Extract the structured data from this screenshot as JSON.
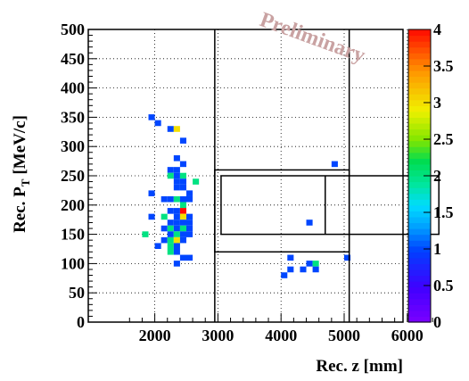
{
  "chart_data": {
    "type": "heatmap",
    "watermark": "Preliminary",
    "xlabel": "Rec. z [mm]",
    "ylabel_main": "Rec. P",
    "ylabel_sub": "T",
    "ylabel_unit": "[MeV/c]",
    "xlim": [
      1600,
      6500
    ],
    "ylim": [
      0,
      500
    ],
    "grid": true,
    "x_ticks": [
      2000,
      3000,
      4000,
      5000,
      6000
    ],
    "x_tick_labels": [
      "2000",
      "3000",
      "4000",
      "5000",
      "6000"
    ],
    "y_ticks": [
      0,
      50,
      100,
      150,
      200,
      250,
      300,
      350,
      400,
      450,
      500
    ],
    "y_tick_labels": [
      "0",
      "50",
      "100",
      "150",
      "200",
      "250",
      "300",
      "350",
      "400",
      "450",
      "500"
    ],
    "z_range": [
      0,
      4
    ],
    "z_ticks": [
      0,
      0.5,
      1,
      1.5,
      2,
      2.5,
      3,
      3.5,
      4
    ],
    "z_tick_labels": [
      "0",
      "0.5",
      "1",
      "1.5",
      "2",
      "2.5",
      "3",
      "3.5",
      "4"
    ],
    "bin_width_mm": 100,
    "bin_height_mev": 10,
    "bins": [
      {
        "x": 1950,
        "y": 350,
        "z": 1
      },
      {
        "x": 2050,
        "y": 340,
        "z": 1
      },
      {
        "x": 2250,
        "y": 330,
        "z": 1
      },
      {
        "x": 2350,
        "y": 330,
        "z": 3
      },
      {
        "x": 2450,
        "y": 310,
        "z": 1
      },
      {
        "x": 2450,
        "y": 270,
        "z": 1
      },
      {
        "x": 2350,
        "y": 280,
        "z": 1
      },
      {
        "x": 2250,
        "y": 260,
        "z": 1
      },
      {
        "x": 2350,
        "y": 260,
        "z": 1
      },
      {
        "x": 2250,
        "y": 250,
        "z": 2
      },
      {
        "x": 2350,
        "y": 250,
        "z": 1
      },
      {
        "x": 2450,
        "y": 250,
        "z": 2
      },
      {
        "x": 2350,
        "y": 240,
        "z": 1
      },
      {
        "x": 2450,
        "y": 240,
        "z": 1
      },
      {
        "x": 2650,
        "y": 240,
        "z": 2
      },
      {
        "x": 1950,
        "y": 220,
        "z": 1
      },
      {
        "x": 2350,
        "y": 230,
        "z": 1
      },
      {
        "x": 2450,
        "y": 230,
        "z": 1
      },
      {
        "x": 2550,
        "y": 220,
        "z": 1
      },
      {
        "x": 2150,
        "y": 210,
        "z": 1
      },
      {
        "x": 2250,
        "y": 210,
        "z": 1
      },
      {
        "x": 2350,
        "y": 210,
        "z": 2
      },
      {
        "x": 2450,
        "y": 210,
        "z": 1
      },
      {
        "x": 2550,
        "y": 210,
        "z": 1
      },
      {
        "x": 2450,
        "y": 200,
        "z": 2
      },
      {
        "x": 2250,
        "y": 190,
        "z": 1
      },
      {
        "x": 2350,
        "y": 190,
        "z": 1
      },
      {
        "x": 2450,
        "y": 190,
        "z": 4
      },
      {
        "x": 1950,
        "y": 180,
        "z": 1
      },
      {
        "x": 2150,
        "y": 180,
        "z": 2
      },
      {
        "x": 2350,
        "y": 180,
        "z": 1
      },
      {
        "x": 2450,
        "y": 180,
        "z": 3
      },
      {
        "x": 2550,
        "y": 180,
        "z": 1
      },
      {
        "x": 2250,
        "y": 170,
        "z": 1
      },
      {
        "x": 2350,
        "y": 170,
        "z": 1
      },
      {
        "x": 2450,
        "y": 170,
        "z": 1
      },
      {
        "x": 2550,
        "y": 170,
        "z": 1
      },
      {
        "x": 2150,
        "y": 160,
        "z": 1
      },
      {
        "x": 2250,
        "y": 160,
        "z": 2
      },
      {
        "x": 2350,
        "y": 160,
        "z": 1
      },
      {
        "x": 2450,
        "y": 160,
        "z": 2
      },
      {
        "x": 2550,
        "y": 160,
        "z": 1
      },
      {
        "x": 1850,
        "y": 150,
        "z": 2
      },
      {
        "x": 2250,
        "y": 150,
        "z": 1
      },
      {
        "x": 2350,
        "y": 150,
        "z": 2
      },
      {
        "x": 2450,
        "y": 150,
        "z": 1
      },
      {
        "x": 2550,
        "y": 150,
        "z": 1
      },
      {
        "x": 2150,
        "y": 140,
        "z": 1
      },
      {
        "x": 2250,
        "y": 140,
        "z": 2
      },
      {
        "x": 2350,
        "y": 140,
        "z": 3
      },
      {
        "x": 2450,
        "y": 140,
        "z": 1
      },
      {
        "x": 2050,
        "y": 130,
        "z": 1
      },
      {
        "x": 2250,
        "y": 130,
        "z": 2
      },
      {
        "x": 2350,
        "y": 130,
        "z": 1
      },
      {
        "x": 2250,
        "y": 120,
        "z": 2
      },
      {
        "x": 2350,
        "y": 120,
        "z": 1
      },
      {
        "x": 2450,
        "y": 110,
        "z": 1
      },
      {
        "x": 2550,
        "y": 110,
        "z": 1
      },
      {
        "x": 2350,
        "y": 100,
        "z": 1
      },
      {
        "x": 4850,
        "y": 270,
        "z": 1
      },
      {
        "x": 4450,
        "y": 170,
        "z": 1
      },
      {
        "x": 4150,
        "y": 110,
        "z": 1
      },
      {
        "x": 5050,
        "y": 110,
        "z": 1
      },
      {
        "x": 4450,
        "y": 100,
        "z": 1
      },
      {
        "x": 4550,
        "y": 100,
        "z": 2
      },
      {
        "x": 4150,
        "y": 90,
        "z": 1
      },
      {
        "x": 4350,
        "y": 90,
        "z": 1
      },
      {
        "x": 4550,
        "y": 90,
        "z": 1
      },
      {
        "x": 4050,
        "y": 80,
        "z": 1
      }
    ],
    "boxes": [
      {
        "x0": 2950,
        "x1": 2950,
        "y0": 0,
        "y1": 500
      },
      {
        "x0": 5080,
        "x1": 5080,
        "y0": 0,
        "y1": 500
      },
      {
        "x0": 2950,
        "x1": 5080,
        "y0": 120,
        "y1": 260
      },
      {
        "x0": 3050,
        "x1": 6500,
        "y0": 150,
        "y1": 250
      },
      {
        "x0": 4700,
        "x1": 4700,
        "y0": 150,
        "y1": 250
      }
    ]
  }
}
